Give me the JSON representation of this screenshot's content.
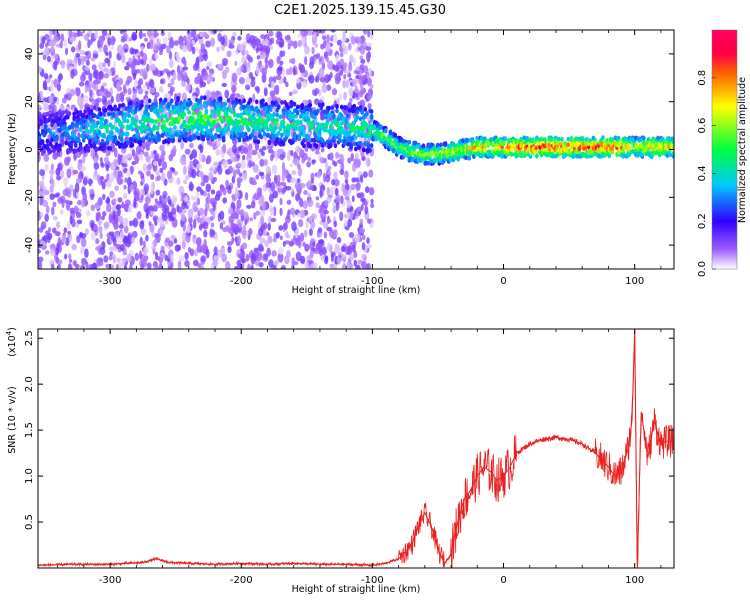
{
  "figure_title": "C2E1.2025.139.15.45.G30",
  "chart_data": [
    {
      "type": "heatmap",
      "title": "C2E1.2025.139.15.45.G30",
      "xlabel": "Height of straight line (km)",
      "ylabel": "Frequency (Hz)",
      "xlim": [
        -355,
        130
      ],
      "ylim": [
        -50,
        50
      ],
      "xticks": [
        -300,
        -200,
        -100,
        0,
        100
      ],
      "xtick_labels": [
        "-300",
        "-200",
        "-100",
        "0",
        "100"
      ],
      "yticks": [
        -40,
        -20,
        0,
        20,
        40
      ],
      "ytick_labels": [
        "-40",
        "-20",
        "0",
        "20",
        "40"
      ],
      "colorbar": {
        "label": "Normalized spectral amplitude",
        "range": [
          0,
          1
        ],
        "ticks": [
          0.0,
          0.2,
          0.4,
          0.6,
          0.8
        ],
        "tick_labels": [
          "0.0",
          "0.2",
          "0.4",
          "0.6",
          "0.8"
        ],
        "colormap": [
          "#ffffff",
          "#a060ff",
          "#3000ff",
          "#00c8ff",
          "#00ff40",
          "#ffff00",
          "#ff6000",
          "#ff0040"
        ]
      },
      "ridge": {
        "x": [
          -355,
          -320,
          -290,
          -260,
          -230,
          -200,
          -170,
          -140,
          -110,
          -100,
          -90,
          -80,
          -70,
          -60,
          -50,
          -40,
          -30,
          -20,
          -10,
          0,
          10,
          20,
          40,
          60,
          80,
          90,
          100,
          110,
          130
        ],
        "freq": [
          6,
          8,
          10,
          12,
          13,
          12,
          11,
          10,
          9,
          8,
          5,
          1,
          -1,
          -2,
          -2,
          -1,
          0,
          1,
          1,
          1,
          1,
          1,
          1,
          1,
          1,
          1,
          1,
          1,
          1
        ],
        "amplitude": [
          0.3,
          0.4,
          0.5,
          0.55,
          0.6,
          0.55,
          0.5,
          0.5,
          0.5,
          0.55,
          0.6,
          0.6,
          0.65,
          0.65,
          0.7,
          0.7,
          0.75,
          0.8,
          0.8,
          0.85,
          0.9,
          0.95,
          0.95,
          0.95,
          0.95,
          0.9,
          0.7,
          0.85,
          0.8
        ]
      },
      "scatter_region": {
        "x_range": [
          -355,
          -100
        ],
        "freq_range": [
          -50,
          50
        ],
        "amplitude": 0.05
      }
    },
    {
      "type": "line",
      "xlabel": "Height of straight line (km)",
      "ylabel": "SNR (10 * v/v)",
      "y_multiplier": "(x10",
      "y_multiplier_exp": "4",
      "xlim": [
        -355,
        130
      ],
      "ylim": [
        0,
        2.6
      ],
      "xticks": [
        -300,
        -200,
        -100,
        0,
        100
      ],
      "xtick_labels": [
        "-300",
        "-200",
        "-100",
        "0",
        "100"
      ],
      "yticks": [
        0.5,
        1.0,
        1.5,
        2.0,
        2.5
      ],
      "ytick_labels": [
        "0.5",
        "1.0",
        "1.5",
        "2.0",
        "2.5"
      ],
      "line_color": "#e82020",
      "series": [
        {
          "x": [
            -355,
            -330,
            -300,
            -275,
            -265,
            -255,
            -240,
            -220,
            -200,
            -180,
            -160,
            -140,
            -120,
            -100,
            -90,
            -80,
            -70,
            -65,
            -60,
            -55,
            -50,
            -45,
            -40,
            -35,
            -30,
            -25,
            -20,
            -15,
            -10,
            -5,
            0,
            5,
            10,
            20,
            30,
            40,
            50,
            60,
            70,
            80,
            85,
            90,
            95,
            98,
            100,
            102,
            105,
            110,
            115,
            120,
            125,
            130
          ],
          "y": [
            0.03,
            0.04,
            0.04,
            0.06,
            0.1,
            0.06,
            0.05,
            0.04,
            0.05,
            0.04,
            0.05,
            0.04,
            0.04,
            0.03,
            0.05,
            0.1,
            0.25,
            0.45,
            0.6,
            0.45,
            0.2,
            0.05,
            0.15,
            0.5,
            0.75,
            0.85,
            1.0,
            1.1,
            1.05,
            0.95,
            1.0,
            1.1,
            1.25,
            1.35,
            1.4,
            1.42,
            1.4,
            1.35,
            1.25,
            1.1,
            1.0,
            1.05,
            1.3,
            1.6,
            2.6,
            0.0,
            1.7,
            1.2,
            1.6,
            1.35,
            1.38,
            1.38
          ]
        }
      ]
    }
  ]
}
